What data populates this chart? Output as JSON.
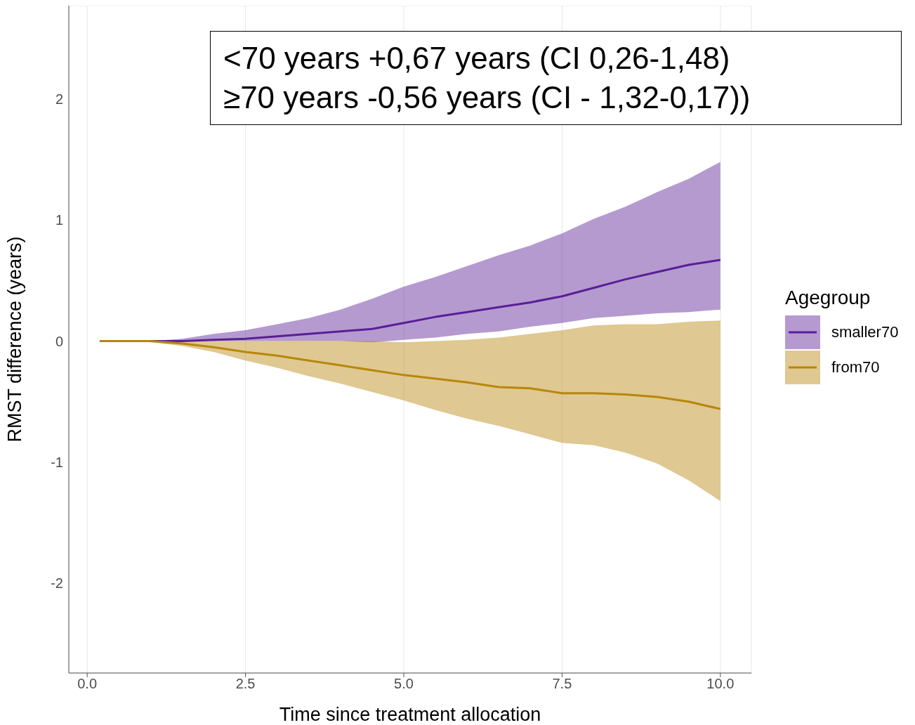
{
  "chart_data": {
    "type": "line",
    "xlabel": "Time since treatment allocation",
    "ylabel": "RMST difference (years)",
    "legend_title": "Agegroup",
    "legend": "right",
    "grid": true,
    "marker": "none",
    "line_style": "solid",
    "annotations": [
      "<70 years +0,67 years (CI 0,26-1,48)",
      "≥70 years -0,56 years (CI - 1,32-0,17))"
    ],
    "x": [
      0.2,
      0.5,
      1,
      1.5,
      2,
      2.5,
      3,
      3.5,
      4,
      4.5,
      5,
      5.5,
      6,
      6.5,
      7,
      7.5,
      8,
      8.5,
      9,
      9.5,
      10
    ],
    "xlim": [
      -0.29,
      10.49
    ],
    "xticks": [
      {
        "value": 0,
        "label": "0.0"
      },
      2.5,
      {
        "value": 5,
        "label": "5.0"
      },
      7.5,
      {
        "value": 10,
        "label": "10.0"
      }
    ],
    "ylim": [
      -2.74,
      2.77
    ],
    "yticks": [
      -2,
      -1,
      0,
      1,
      2
    ],
    "series": [
      {
        "name": "smaller70",
        "color": "#5a1e96",
        "values": [
          0,
          0,
          0,
          0,
          0.01,
          0.02,
          0.04,
          0.06,
          0.08,
          0.1,
          0.15,
          0.2,
          0.24,
          0.28,
          0.32,
          0.37,
          0.44,
          0.51,
          0.57,
          0.63,
          0.67
        ],
        "lower": [
          0,
          0,
          0,
          0,
          0,
          0,
          0,
          0,
          0,
          -0.01,
          0.01,
          0.03,
          0.06,
          0.08,
          0.12,
          0.15,
          0.19,
          0.21,
          0.23,
          0.24,
          0.26
        ],
        "upper": [
          0,
          0,
          0,
          0.02,
          0.06,
          0.09,
          0.14,
          0.19,
          0.26,
          0.35,
          0.45,
          0.53,
          0.62,
          0.71,
          0.79,
          0.89,
          1.01,
          1.11,
          1.23,
          1.34,
          1.48
        ]
      },
      {
        "name": "from70",
        "color": "#b8860b",
        "values": [
          0,
          0,
          0,
          -0.02,
          -0.05,
          -0.09,
          -0.12,
          -0.16,
          -0.2,
          -0.24,
          -0.28,
          -0.31,
          -0.34,
          -0.38,
          -0.39,
          -0.43,
          -0.43,
          -0.44,
          -0.46,
          -0.5,
          -0.56
        ],
        "lower": [
          0,
          0,
          -0.01,
          -0.04,
          -0.09,
          -0.16,
          -0.22,
          -0.29,
          -0.35,
          -0.42,
          -0.49,
          -0.57,
          -0.64,
          -0.7,
          -0.77,
          -0.84,
          -0.86,
          -0.92,
          -1.01,
          -1.15,
          -1.32
        ],
        "upper": [
          0,
          0,
          0,
          0,
          0,
          0,
          0,
          0,
          0,
          0,
          -0.01,
          0,
          0.01,
          0.03,
          0.06,
          0.09,
          0.13,
          0.14,
          0.14,
          0.16,
          0.17
        ]
      }
    ]
  }
}
